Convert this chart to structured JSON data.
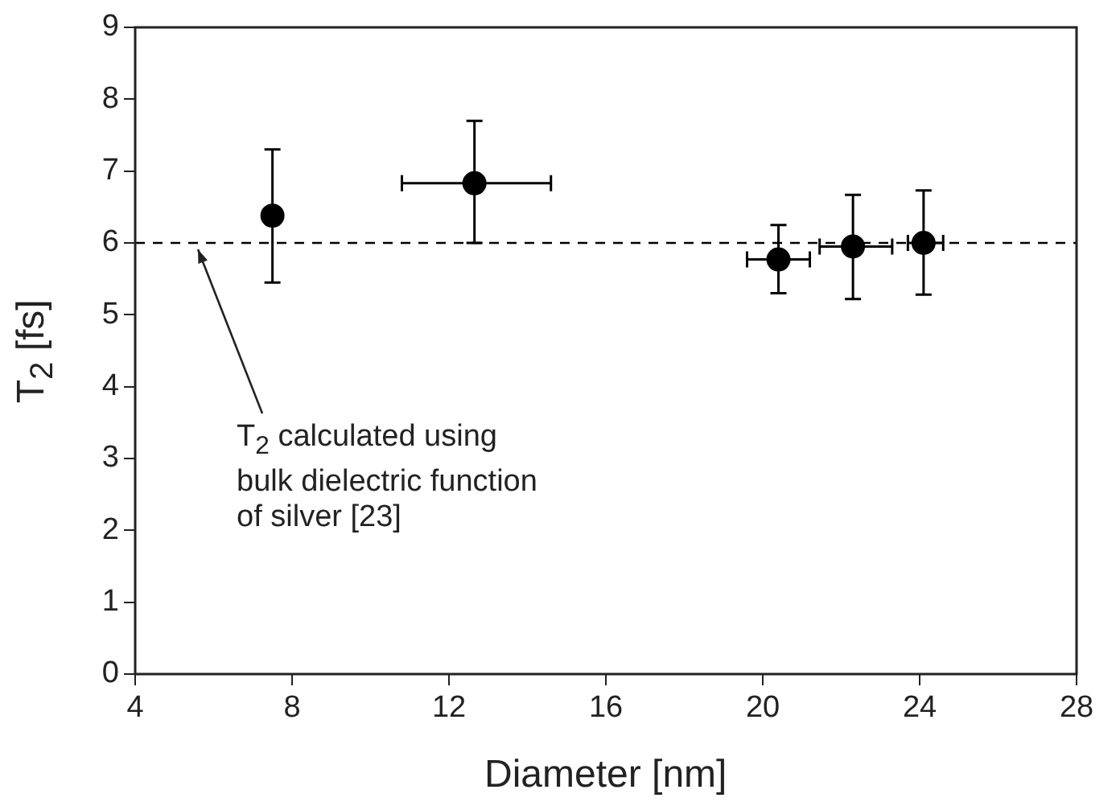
{
  "chart_data": {
    "type": "scatter",
    "xlabel": "Diameter [nm]",
    "ylabel": "T$_{2}$ [fs]",
    "x": [
      7.5,
      12.65,
      20.4,
      22.3,
      24.1
    ],
    "values": [
      6.38,
      6.83,
      5.77,
      5.95,
      6.0
    ],
    "errors": [
      [
        5.45,
        7.3
      ],
      [
        6.0,
        7.7
      ],
      [
        5.3,
        6.25
      ],
      [
        5.22,
        6.67
      ],
      [
        5.28,
        6.73
      ]
    ],
    "xerrors": [
      null,
      [
        10.8,
        14.6
      ],
      [
        19.6,
        21.2
      ],
      [
        21.45,
        23.3
      ],
      [
        23.7,
        24.6
      ]
    ],
    "color": "#000000",
    "marker": "circle",
    "xlim": [
      4,
      28
    ],
    "xticks": [
      4,
      8,
      12,
      16,
      20,
      24,
      28
    ],
    "ylim": [
      0,
      9
    ],
    "yticks": [
      0,
      1,
      2,
      3,
      4,
      5,
      6,
      7,
      8,
      9
    ],
    "grid": false,
    "legend": false,
    "ref_lines": [
      {
        "axis": "y",
        "value": 6,
        "line_style": "dashed",
        "color": "#000000"
      }
    ],
    "annotations": [
      {
        "text": "T$_{2}$ calculated using bulk dielectric function of silver [23]",
        "x": 5.6,
        "y": 5.9
      }
    ]
  }
}
